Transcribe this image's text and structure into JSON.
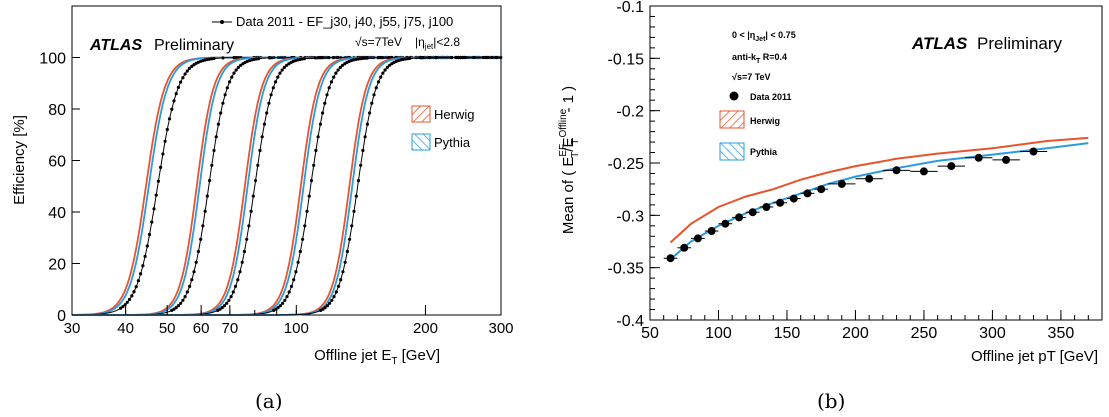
{
  "colors": {
    "herwig": "#e8532d",
    "pythia": "#2a9be0",
    "data": "#000000"
  },
  "captions": {
    "a": "(a)",
    "b": "(b)"
  },
  "chart_data": [
    {
      "type": "line",
      "atlas": "ATLAS",
      "prelim": "Preliminary",
      "ylabel": "Efficiency [%]",
      "xlabel": "Offline jet E",
      "xlabel_sub": "T",
      "xlabel_unit": " [GeV]",
      "x_scale": "log",
      "xlim": [
        30,
        300
      ],
      "ylim": [
        0,
        120
      ],
      "x_ticks": [
        30,
        40,
        50,
        60,
        70,
        100,
        200,
        300
      ],
      "y_ticks": [
        0,
        20,
        40,
        60,
        80,
        100
      ],
      "legend_data": "Data 2011 - EF_j30, j40, j55, j75, j100",
      "energy_label": "√s=7TeV",
      "eta_label": "|η",
      "eta_sub": "jet",
      "eta_cut": "|<2.8",
      "legend": [
        "Herwig",
        "Pythia"
      ],
      "series_params": [
        {
          "trigger": "EF_j30",
          "data_mu": 47.5,
          "data_w": 0.05,
          "mc_mu": 45.3,
          "mc_w": 0.05
        },
        {
          "trigger": "EF_j40",
          "data_mu": 62.5,
          "data_w": 0.045,
          "mc_mu": 59.5,
          "mc_w": 0.045
        },
        {
          "trigger": "EF_j55",
          "data_mu": 80.0,
          "data_w": 0.045,
          "mc_mu": 77.0,
          "mc_w": 0.045
        },
        {
          "trigger": "EF_j75",
          "data_mu": 108.0,
          "data_w": 0.045,
          "mc_mu": 104.0,
          "mc_w": 0.045
        },
        {
          "trigger": "EF_j100",
          "data_mu": 139.0,
          "data_w": 0.045,
          "mc_mu": 135.0,
          "mc_w": 0.045
        }
      ],
      "plateau": 100
    },
    {
      "type": "line",
      "atlas": "ATLAS",
      "prelim": "Preliminary",
      "ylabel": "Mean of ( E",
      "ylabel_sup1": "EF",
      "ylabel_sub1": "T",
      "ylabel_mid": "/E",
      "ylabel_sup2": "Offline",
      "ylabel_sub2": "T",
      "ylabel_end": " - 1 )",
      "xlabel": "Offline jet pT [GeV]",
      "xlim": [
        50,
        380
      ],
      "ylim": [
        -0.4,
        -0.1
      ],
      "x_ticks": [
        50,
        100,
        150,
        200,
        250,
        300,
        350
      ],
      "y_ticks": [
        -0.4,
        -0.35,
        -0.3,
        -0.25,
        -0.2,
        -0.15,
        -0.1
      ],
      "y_tick_labels": [
        "-0.4",
        "-0.35",
        "-0.3",
        "-0.25",
        "-0.2",
        "-0.15",
        "-0.1"
      ],
      "x_tick_labels": [
        "50",
        "100",
        "150",
        "200",
        "250",
        "300",
        "350"
      ],
      "eta_label": "0 < |η",
      "eta_sub": "Jet",
      "eta_cut": "| < 0.75",
      "algo_label": "anti-k",
      "algo_sub": "T",
      "algo_rest": " R=0.4",
      "energy_label": "√s=7 TeV",
      "legend": [
        "Data 2011",
        "Herwig",
        "Pythia"
      ],
      "data_points": {
        "x": [
          65,
          75,
          85,
          95,
          105,
          115,
          125,
          135,
          145,
          155,
          165,
          175,
          190,
          210,
          230,
          250,
          270,
          290,
          310,
          330
        ],
        "y": [
          -0.341,
          -0.331,
          -0.322,
          -0.315,
          -0.308,
          -0.302,
          -0.297,
          -0.292,
          -0.288,
          -0.284,
          -0.279,
          -0.275,
          -0.27,
          -0.265,
          -0.257,
          -0.258,
          -0.253,
          -0.245,
          -0.247,
          -0.239
        ],
        "xerr": [
          5,
          5,
          5,
          5,
          5,
          5,
          5,
          5,
          5,
          5,
          5,
          5,
          10,
          10,
          10,
          10,
          10,
          10,
          10,
          10
        ]
      },
      "herwig": {
        "x": [
          65,
          80,
          100,
          120,
          140,
          160,
          180,
          200,
          230,
          260,
          300,
          340,
          370
        ],
        "y": [
          -0.326,
          -0.308,
          -0.292,
          -0.282,
          -0.275,
          -0.266,
          -0.259,
          -0.253,
          -0.246,
          -0.241,
          -0.236,
          -0.229,
          -0.226
        ]
      },
      "pythia": {
        "x": [
          65,
          80,
          100,
          120,
          140,
          160,
          180,
          200,
          230,
          260,
          300,
          340,
          370
        ],
        "y": [
          -0.342,
          -0.325,
          -0.31,
          -0.298,
          -0.288,
          -0.279,
          -0.27,
          -0.263,
          -0.255,
          -0.248,
          -0.242,
          -0.236,
          -0.231
        ]
      }
    }
  ]
}
